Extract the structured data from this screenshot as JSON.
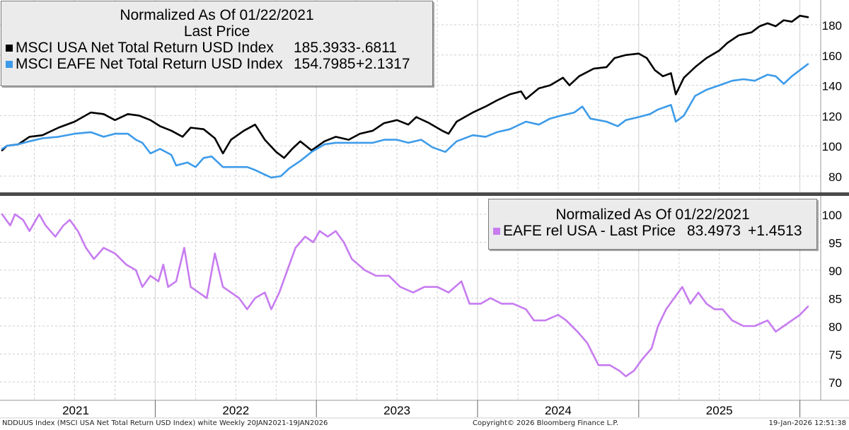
{
  "colors": {
    "usa": "#000000",
    "eafe": "#3d9be9",
    "rel": "#c77cf0",
    "grid": "#cfcfcf",
    "divider": "#4a4a4a"
  },
  "top_legend": {
    "title": "Normalized As Of 01/22/2021",
    "subtitle": "Last Price",
    "items": [
      {
        "label": "MSCI USA Net Total Return USD Index",
        "value": "185.3933",
        "change": "-.6811"
      },
      {
        "label": "MSCI EAFE Net Total Return USD Index",
        "value": "154.7985",
        "change": "+2.1317"
      }
    ]
  },
  "bottom_legend": {
    "title": "Normalized As Of 01/22/2021",
    "item": {
      "label": "EAFE rel USA - Last Price",
      "value": "83.4973",
      "change": "+1.4513"
    }
  },
  "footer": {
    "left": "NDDUUS Index (MSCI USA Net Total Return USD Index) white Weekly 20JAN2021-19JAN2026",
    "center": "Copyright© 2026 Bloomberg Finance L.P.",
    "right": "19-Jan-2026 12:51:38"
  },
  "chart_data": [
    {
      "type": "line",
      "title": "Normalized As Of 01/22/2021 - Last Price",
      "x_unit": "year",
      "x_range": [
        2021.05,
        2026.05
      ],
      "x_tick_labels": [
        "2021",
        "2022",
        "2023",
        "2024",
        "2025"
      ],
      "ylim": [
        70,
        190
      ],
      "y_ticks": [
        80,
        100,
        120,
        140,
        160,
        180
      ],
      "series": [
        {
          "name": "MSCI USA Net Total Return USD Index",
          "color": "#000000",
          "points": [
            [
              2021.05,
              97
            ],
            [
              2021.08,
              100
            ],
            [
              2021.15,
              101
            ],
            [
              2021.22,
              106
            ],
            [
              2021.3,
              107
            ],
            [
              2021.4,
              112
            ],
            [
              2021.5,
              116
            ],
            [
              2021.6,
              122
            ],
            [
              2021.68,
              121
            ],
            [
              2021.75,
              117
            ],
            [
              2021.83,
              121
            ],
            [
              2021.9,
              120
            ],
            [
              2021.97,
              117
            ],
            [
              2022.03,
              113
            ],
            [
              2022.1,
              110
            ],
            [
              2022.17,
              106
            ],
            [
              2022.22,
              112
            ],
            [
              2022.3,
              111
            ],
            [
              2022.37,
              105
            ],
            [
              2022.42,
              95
            ],
            [
              2022.47,
              104
            ],
            [
              2022.55,
              110
            ],
            [
              2022.62,
              114
            ],
            [
              2022.68,
              104
            ],
            [
              2022.75,
              96
            ],
            [
              2022.8,
              92
            ],
            [
              2022.85,
              98
            ],
            [
              2022.9,
              103
            ],
            [
              2022.97,
              97
            ],
            [
              2023.05,
              103
            ],
            [
              2023.12,
              106
            ],
            [
              2023.2,
              104
            ],
            [
              2023.27,
              108
            ],
            [
              2023.35,
              110
            ],
            [
              2023.42,
              115
            ],
            [
              2023.5,
              117
            ],
            [
              2023.57,
              114
            ],
            [
              2023.62,
              119
            ],
            [
              2023.7,
              115
            ],
            [
              2023.78,
              110
            ],
            [
              2023.82,
              108
            ],
            [
              2023.87,
              116
            ],
            [
              2023.97,
              122
            ],
            [
              2024.05,
              126
            ],
            [
              2024.12,
              130
            ],
            [
              2024.2,
              134
            ],
            [
              2024.27,
              136
            ],
            [
              2024.3,
              131
            ],
            [
              2024.38,
              138
            ],
            [
              2024.45,
              140
            ],
            [
              2024.53,
              145
            ],
            [
              2024.57,
              140
            ],
            [
              2024.63,
              146
            ],
            [
              2024.72,
              151
            ],
            [
              2024.8,
              152
            ],
            [
              2024.85,
              158
            ],
            [
              2024.92,
              160
            ],
            [
              2025.0,
              161
            ],
            [
              2025.05,
              158
            ],
            [
              2025.1,
              150
            ],
            [
              2025.15,
              146
            ],
            [
              2025.2,
              148
            ],
            [
              2025.23,
              134
            ],
            [
              2025.28,
              145
            ],
            [
              2025.35,
              152
            ],
            [
              2025.42,
              158
            ],
            [
              2025.5,
              163
            ],
            [
              2025.55,
              168
            ],
            [
              2025.62,
              173
            ],
            [
              2025.7,
              175
            ],
            [
              2025.75,
              179
            ],
            [
              2025.8,
              181
            ],
            [
              2025.85,
              179
            ],
            [
              2025.9,
              183
            ],
            [
              2025.95,
              182
            ],
            [
              2026.0,
              186
            ],
            [
              2026.05,
              185
            ]
          ]
        },
        {
          "name": "MSCI EAFE Net Total Return USD Index",
          "color": "#3d9be9",
          "points": [
            [
              2021.05,
              98
            ],
            [
              2021.08,
              100
            ],
            [
              2021.15,
              101
            ],
            [
              2021.22,
              103
            ],
            [
              2021.3,
              105
            ],
            [
              2021.4,
              106
            ],
            [
              2021.5,
              108
            ],
            [
              2021.6,
              109
            ],
            [
              2021.68,
              106
            ],
            [
              2021.75,
              108
            ],
            [
              2021.83,
              108
            ],
            [
              2021.88,
              104
            ],
            [
              2021.92,
              102
            ],
            [
              2021.97,
              95
            ],
            [
              2022.03,
              98
            ],
            [
              2022.1,
              94
            ],
            [
              2022.13,
              87
            ],
            [
              2022.2,
              89
            ],
            [
              2022.25,
              86
            ],
            [
              2022.3,
              92
            ],
            [
              2022.35,
              93
            ],
            [
              2022.42,
              86
            ],
            [
              2022.5,
              86
            ],
            [
              2022.57,
              86
            ],
            [
              2022.62,
              84
            ],
            [
              2022.68,
              81
            ],
            [
              2022.72,
              79
            ],
            [
              2022.78,
              80
            ],
            [
              2022.83,
              85
            ],
            [
              2022.9,
              90
            ],
            [
              2022.97,
              96
            ],
            [
              2023.05,
              101
            ],
            [
              2023.12,
              102
            ],
            [
              2023.2,
              102
            ],
            [
              2023.27,
              102
            ],
            [
              2023.35,
              102
            ],
            [
              2023.42,
              104
            ],
            [
              2023.5,
              104
            ],
            [
              2023.57,
              102
            ],
            [
              2023.65,
              104
            ],
            [
              2023.72,
              99
            ],
            [
              2023.8,
              96
            ],
            [
              2023.87,
              103
            ],
            [
              2023.97,
              107
            ],
            [
              2024.05,
              106
            ],
            [
              2024.12,
              109
            ],
            [
              2024.2,
              111
            ],
            [
              2024.3,
              116
            ],
            [
              2024.38,
              114
            ],
            [
              2024.45,
              118
            ],
            [
              2024.52,
              120
            ],
            [
              2024.6,
              122
            ],
            [
              2024.65,
              126
            ],
            [
              2024.7,
              118
            ],
            [
              2024.8,
              116
            ],
            [
              2024.87,
              113
            ],
            [
              2024.92,
              117
            ],
            [
              2025.0,
              119
            ],
            [
              2025.07,
              121
            ],
            [
              2025.12,
              124
            ],
            [
              2025.2,
              127
            ],
            [
              2025.23,
              116
            ],
            [
              2025.28,
              120
            ],
            [
              2025.35,
              133
            ],
            [
              2025.42,
              137
            ],
            [
              2025.5,
              140
            ],
            [
              2025.58,
              143
            ],
            [
              2025.65,
              144
            ],
            [
              2025.72,
              143
            ],
            [
              2025.8,
              147
            ],
            [
              2025.85,
              146
            ],
            [
              2025.9,
              141
            ],
            [
              2025.95,
              146
            ],
            [
              2026.0,
              150
            ],
            [
              2026.05,
              154
            ]
          ]
        }
      ]
    },
    {
      "type": "line",
      "title": "EAFE rel USA - Last Price",
      "x_unit": "year",
      "x_range": [
        2021.05,
        2026.05
      ],
      "ylim": [
        68,
        102
      ],
      "y_ticks": [
        70,
        75,
        80,
        85,
        90,
        95,
        100
      ],
      "series": [
        {
          "name": "EAFE rel USA",
          "color": "#c77cf0",
          "points": [
            [
              2021.05,
              100
            ],
            [
              2021.1,
              98
            ],
            [
              2021.13,
              100
            ],
            [
              2021.18,
              99
            ],
            [
              2021.22,
              97
            ],
            [
              2021.28,
              100
            ],
            [
              2021.32,
              98
            ],
            [
              2021.38,
              96
            ],
            [
              2021.43,
              98
            ],
            [
              2021.47,
              99
            ],
            [
              2021.52,
              97
            ],
            [
              2021.57,
              94
            ],
            [
              2021.62,
              92
            ],
            [
              2021.68,
              94
            ],
            [
              2021.75,
              93
            ],
            [
              2021.82,
              91
            ],
            [
              2021.88,
              90
            ],
            [
              2021.92,
              87
            ],
            [
              2021.97,
              89
            ],
            [
              2022.02,
              88
            ],
            [
              2022.05,
              91
            ],
            [
              2022.08,
              87
            ],
            [
              2022.13,
              88
            ],
            [
              2022.18,
              94
            ],
            [
              2022.22,
              87
            ],
            [
              2022.27,
              86
            ],
            [
              2022.32,
              85
            ],
            [
              2022.37,
              93
            ],
            [
              2022.42,
              87
            ],
            [
              2022.47,
              86
            ],
            [
              2022.52,
              85
            ],
            [
              2022.57,
              83
            ],
            [
              2022.62,
              85
            ],
            [
              2022.68,
              86
            ],
            [
              2022.72,
              83
            ],
            [
              2022.77,
              86
            ],
            [
              2022.82,
              90
            ],
            [
              2022.87,
              94
            ],
            [
              2022.93,
              96
            ],
            [
              2022.98,
              95
            ],
            [
              2023.02,
              97
            ],
            [
              2023.07,
              96
            ],
            [
              2023.12,
              97
            ],
            [
              2023.17,
              95
            ],
            [
              2023.22,
              92
            ],
            [
              2023.3,
              90
            ],
            [
              2023.37,
              89
            ],
            [
              2023.45,
              89
            ],
            [
              2023.52,
              87
            ],
            [
              2023.6,
              86
            ],
            [
              2023.67,
              87
            ],
            [
              2023.75,
              87
            ],
            [
              2023.82,
              86
            ],
            [
              2023.9,
              88
            ],
            [
              2023.95,
              84
            ],
            [
              2024.02,
              84
            ],
            [
              2024.08,
              85
            ],
            [
              2024.15,
              84
            ],
            [
              2024.22,
              84
            ],
            [
              2024.3,
              83
            ],
            [
              2024.35,
              81
            ],
            [
              2024.42,
              81
            ],
            [
              2024.5,
              82
            ],
            [
              2024.55,
              81
            ],
            [
              2024.62,
              79
            ],
            [
              2024.68,
              77
            ],
            [
              2024.75,
              73
            ],
            [
              2024.82,
              73
            ],
            [
              2024.88,
              72
            ],
            [
              2024.92,
              71
            ],
            [
              2024.97,
              72
            ],
            [
              2025.02,
              74
            ],
            [
              2025.08,
              76
            ],
            [
              2025.12,
              80
            ],
            [
              2025.17,
              83
            ],
            [
              2025.22,
              85
            ],
            [
              2025.27,
              87
            ],
            [
              2025.32,
              84
            ],
            [
              2025.37,
              86
            ],
            [
              2025.42,
              84
            ],
            [
              2025.47,
              83
            ],
            [
              2025.52,
              83
            ],
            [
              2025.58,
              81
            ],
            [
              2025.65,
              80
            ],
            [
              2025.72,
              80
            ],
            [
              2025.8,
              81
            ],
            [
              2025.85,
              79
            ],
            [
              2025.9,
              80
            ],
            [
              2025.95,
              81
            ],
            [
              2026.0,
              82
            ],
            [
              2026.05,
              83.5
            ]
          ]
        }
      ]
    }
  ]
}
